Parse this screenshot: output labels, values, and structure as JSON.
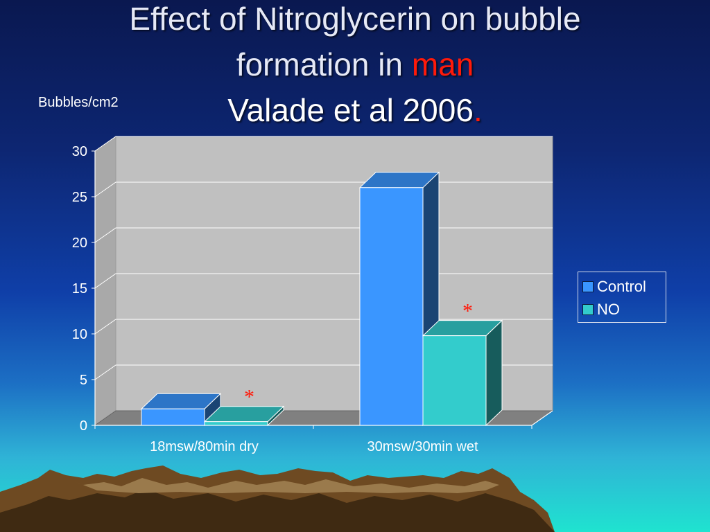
{
  "slide": {
    "title_line1": "Effect of Nitroglycerin on bubble",
    "title_line2_prefix": "formation in ",
    "title_line2_accent": "man",
    "title_line3": "Valade et al 2006",
    "title_line3_suffix": "."
  },
  "colors": {
    "control": "#3a96ff",
    "no": "#33cccc",
    "accent": "#ff1a0a",
    "plot_wall": "#c0c0c0",
    "plot_floor": "#808080"
  },
  "chart_data": {
    "type": "bar",
    "ylabel": "Bubbles/cm2",
    "categories": [
      "18msw/80min dry",
      "30msw/30min wet"
    ],
    "series": [
      {
        "name": "Control",
        "values": [
          1.8,
          26
        ]
      },
      {
        "name": "NO",
        "values": [
          0.4,
          9.8
        ]
      }
    ],
    "ylim": [
      0,
      30
    ],
    "yticks": [
      "0",
      "5",
      "10",
      "15",
      "20",
      "25",
      "30"
    ],
    "grid": true,
    "three_d": true,
    "legend_position": "right",
    "annotations": [
      {
        "text": "*",
        "category": "18msw/80min dry",
        "series": "NO"
      },
      {
        "text": "*",
        "category": "30msw/30min wet",
        "series": "NO"
      }
    ]
  }
}
